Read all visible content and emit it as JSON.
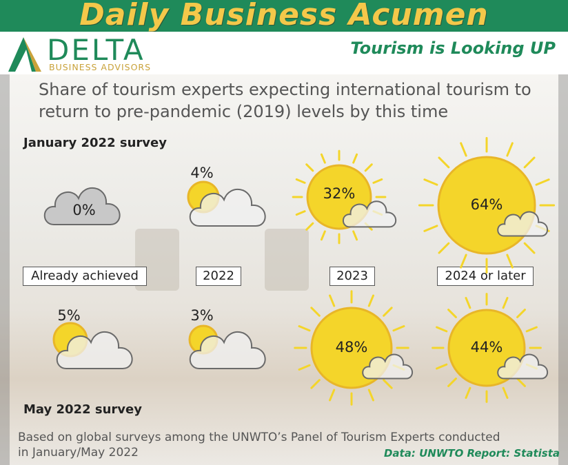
{
  "banner": {
    "title": "Daily Business Acumen"
  },
  "logo": {
    "word": "DELTA",
    "sub": "BUSINESS ADVISORS"
  },
  "subtitle": "Tourism is Looking UP",
  "heading": "Share of tourism experts expecting international tourism to return to pre-pandemic (2019) levels by this time",
  "colors": {
    "banner": "#1f8a5a",
    "banner_text": "#f4c84a",
    "brand_green": "#1f8a5a",
    "gold": "#c9a23a",
    "sun": "#f4d52a",
    "sun_dark": "#e8b628"
  },
  "chart_data": {
    "type": "table",
    "categories": [
      "Already achieved",
      "2022",
      "2023",
      "2024 or later"
    ],
    "unit": "%",
    "series": [
      {
        "name": "January 2022 survey",
        "values": [
          0,
          4,
          32,
          64
        ],
        "labels": [
          "0%",
          "4%",
          "32%",
          "64%"
        ]
      },
      {
        "name": "May 2022 survey",
        "values": [
          5,
          3,
          48,
          44
        ],
        "labels": [
          "5%",
          "3%",
          "48%",
          "44%"
        ]
      }
    ]
  },
  "footnote": "Based on global surveys among the UNWTO’s Panel of Tourism Experts conducted in January/May 2022",
  "source": "Data: UNWTO Report: Statista"
}
